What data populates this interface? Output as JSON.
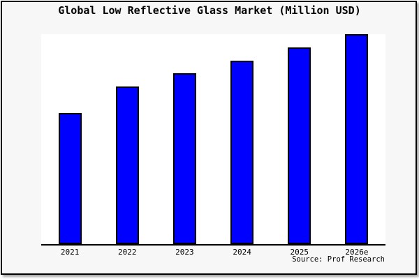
{
  "chart_data": {
    "type": "bar",
    "title": "Global Low Reflective Glass Market (Million USD)",
    "categories": [
      "2021",
      "2022",
      "2023",
      "2024",
      "2025",
      "2026e"
    ],
    "values": [
      62.5,
      75,
      81.25,
      87.5,
      93.75,
      100
    ],
    "values_note": "y-axis has no ticks or labels; values are relative bar heights with 2026e = 100",
    "xlabel": "",
    "ylabel": "",
    "ylim": [
      0,
      100.5
    ],
    "grid": false,
    "legend": "none",
    "source_label": "Source: Prof Research"
  },
  "colors": {
    "bar_fill": "#0000ff",
    "bar_edge": "#000000",
    "page_background": "#f7f7f7",
    "plot_background": "#ffffff",
    "axis": "#000000",
    "border": "#000000",
    "text": "#000000"
  }
}
